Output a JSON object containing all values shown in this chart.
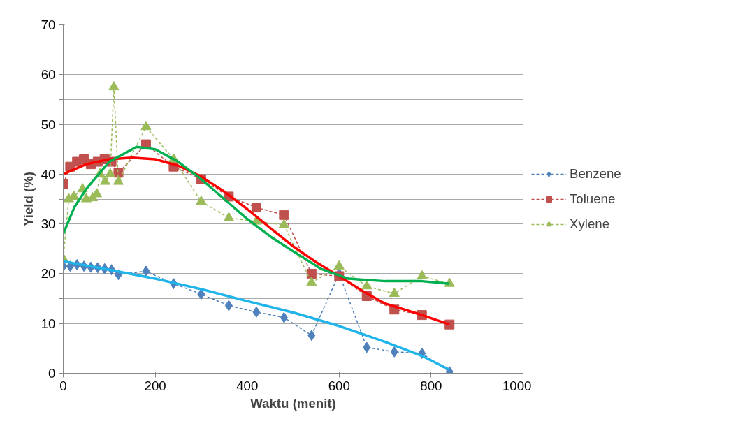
{
  "chart_data": {
    "type": "line",
    "xlabel": "Waktu (menit)",
    "ylabel": "Yield (%)",
    "xlim": [
      0,
      1000
    ],
    "xticks": [
      0,
      200,
      400,
      600,
      800,
      1000
    ],
    "ylim": [
      0,
      70
    ],
    "yticks": [
      0,
      {
        "value": 5,
        "label": null
      },
      10,
      {
        "value": 15,
        "label": null
      },
      20,
      {
        "value": 25,
        "label": null
      },
      30,
      {
        "value": 35,
        "label": null
      },
      40,
      {
        "value": 45,
        "label": null
      },
      50,
      {
        "value": 55,
        "label": null
      },
      60,
      {
        "value": 65,
        "label": null
      },
      70
    ],
    "grid": "y",
    "legend": "right",
    "series": [
      {
        "name": "Benzene",
        "color": "#4f81bd",
        "marker": "diamond",
        "line_style": "dashed",
        "x": [
          0,
          15,
          30,
          45,
          60,
          75,
          90,
          105,
          120,
          180,
          240,
          300,
          360,
          420,
          480,
          540,
          600,
          660,
          720,
          780,
          840
        ],
        "values": [
          21.5,
          21.5,
          21.8,
          21.5,
          21.3,
          21.2,
          21,
          20.8,
          19.8,
          20.5,
          18,
          15.9,
          13.6,
          12.3,
          11.2,
          7.6,
          20,
          5.2,
          4.3,
          4,
          0.3
        ]
      },
      {
        "name": "Toluene",
        "color": "#c0504d",
        "marker": "square",
        "line_style": "dashed",
        "x": [
          0,
          15,
          30,
          45,
          60,
          75,
          90,
          105,
          120,
          180,
          240,
          300,
          360,
          420,
          480,
          540,
          600,
          660,
          720,
          780,
          840
        ],
        "values": [
          38,
          41.5,
          42.5,
          43,
          42,
          42.5,
          43,
          42.5,
          40.3,
          46,
          41.5,
          39,
          35.5,
          33.3,
          31.8,
          20,
          19.5,
          15.5,
          12.8,
          11.7,
          9.8
        ]
      },
      {
        "name": "Xylene",
        "color": "#9bbb59",
        "marker": "triangle",
        "line_style": "dashed",
        "x": [
          0,
          12,
          23,
          42,
          50,
          64,
          73,
          80,
          91,
          102,
          110,
          120,
          180,
          240,
          300,
          360,
          420,
          480,
          540,
          600,
          660,
          720,
          780,
          840
        ],
        "values": [
          23,
          35,
          35.5,
          37,
          35,
          35.2,
          36,
          40,
          38.5,
          40,
          57.5,
          38.5,
          49.5,
          43,
          34.5,
          31.2,
          30.5,
          29.8,
          18.2,
          21.5,
          17.5,
          16,
          19.5,
          18
        ]
      },
      {
        "color": "#1fb4ea",
        "marker": "none",
        "line_style": "solid",
        "x": [
          0,
          100,
          200,
          300,
          400,
          500,
          600,
          700,
          780,
          840
        ],
        "values": [
          22.5,
          20.8,
          19,
          16.9,
          14.5,
          12.2,
          9.5,
          6.3,
          3.5,
          0.7
        ]
      },
      {
        "color": "#ff0000",
        "marker": "none",
        "line_style": "solid",
        "x": [
          0,
          50,
          100,
          150,
          200,
          250,
          300,
          350,
          400,
          450,
          500,
          550,
          600,
          650,
          700,
          770,
          840
        ],
        "values": [
          40,
          42,
          43,
          43.3,
          43,
          41.7,
          39.5,
          36.5,
          33,
          29.2,
          25.5,
          22.3,
          19.5,
          16.6,
          14,
          12,
          9.8
        ]
      },
      {
        "color": "#00b050",
        "marker": "none",
        "line_style": "solid",
        "x": [
          0,
          25,
          50,
          100,
          160,
          200,
          250,
          300,
          350,
          400,
          450,
          500,
          560,
          620,
          700,
          780,
          840
        ],
        "values": [
          28,
          33.5,
          37,
          42.5,
          45.5,
          45,
          42.5,
          39,
          35,
          31,
          27.5,
          24.5,
          21,
          19,
          18.5,
          18.5,
          18
        ]
      }
    ]
  }
}
